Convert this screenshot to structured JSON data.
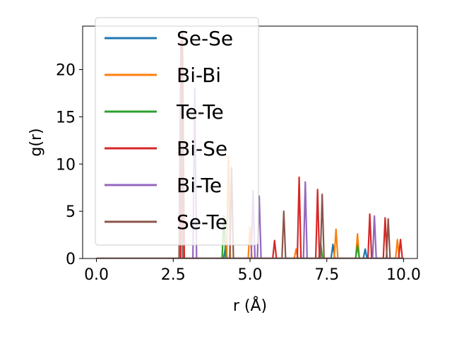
{
  "chart_data": {
    "type": "line",
    "title": "",
    "xlabel": "r (Å)",
    "ylabel": "g(r)",
    "xlim": [
      -0.45,
      10.45
    ],
    "ylim": [
      0,
      24.6
    ],
    "xticks": [
      0.0,
      2.5,
      5.0,
      7.5,
      10.0
    ],
    "xtick_labels": [
      "0.0",
      "2.5",
      "5.0",
      "7.5",
      "10.0"
    ],
    "yticks": [
      0,
      5,
      10,
      15,
      20
    ],
    "ytick_labels": [
      "0",
      "5",
      "10",
      "15",
      "20"
    ],
    "grid": false,
    "legend": "upper-left",
    "series": [
      {
        "name": "Se-Se",
        "color": "#1f77b4",
        "peaks": [
          [
            4.2,
            1.2
          ],
          [
            7.7,
            1.5
          ],
          [
            8.75,
            1.0
          ]
        ]
      },
      {
        "name": "Bi-Bi",
        "color": "#ff7f0e",
        "peaks": [
          [
            4.3,
            10.8
          ],
          [
            5.0,
            3.3
          ],
          [
            6.5,
            1.0
          ],
          [
            7.8,
            3.1
          ],
          [
            8.5,
            2.6
          ],
          [
            9.8,
            2.0
          ]
        ]
      },
      {
        "name": "Te-Te",
        "color": "#2ca02c",
        "peaks": [
          [
            4.15,
            4.5
          ],
          [
            7.3,
            1.6
          ],
          [
            8.5,
            1.4
          ]
        ]
      },
      {
        "name": "Bi-Se",
        "color": "#d62728",
        "peaks": [
          [
            2.8,
            24.0
          ],
          [
            5.8,
            1.9
          ],
          [
            6.6,
            8.6
          ],
          [
            7.2,
            7.3
          ],
          [
            8.9,
            4.7
          ],
          [
            9.4,
            4.3
          ],
          [
            9.9,
            2.0
          ]
        ]
      },
      {
        "name": "Bi-Te",
        "color": "#9467bd",
        "peaks": [
          [
            3.2,
            18.0
          ],
          [
            5.1,
            7.2
          ],
          [
            5.3,
            6.6
          ],
          [
            6.8,
            8.1
          ],
          [
            9.05,
            4.5
          ]
        ]
      },
      {
        "name": "Se-Te",
        "color": "#8c564b",
        "peaks": [
          [
            2.75,
            23.0
          ],
          [
            4.4,
            9.6
          ],
          [
            6.1,
            5.0
          ],
          [
            7.35,
            6.8
          ],
          [
            9.5,
            4.2
          ]
        ]
      }
    ]
  }
}
